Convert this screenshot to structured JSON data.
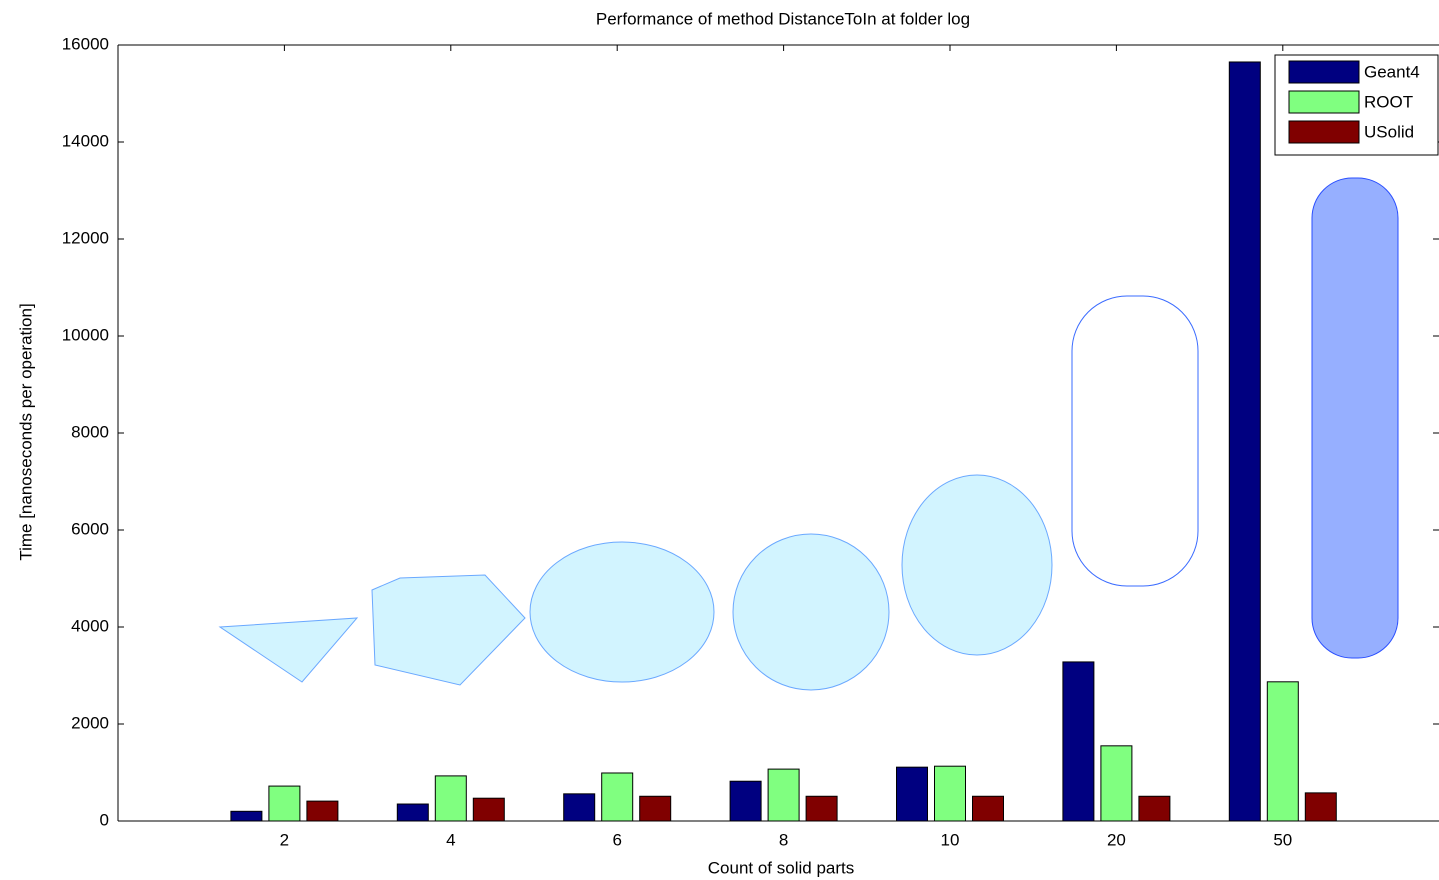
{
  "chart_data": {
    "type": "bar",
    "title": "Performance of method DistanceToIn at folder log",
    "x_label": "Count of solid parts",
    "y_label": "Time [nanoseconds per operation]",
    "categories": [
      "2",
      "4",
      "6",
      "8",
      "10",
      "20",
      "50"
    ],
    "series": [
      {
        "name": "Geant4",
        "color": "#000080",
        "values": [
          200,
          350,
          560,
          820,
          1110,
          3280,
          15650
        ]
      },
      {
        "name": "ROOT",
        "color": "#80ff80",
        "values": [
          720,
          930,
          990,
          1070,
          1130,
          1550,
          2870
        ]
      },
      {
        "name": "USolid",
        "color": "#800000",
        "values": [
          410,
          470,
          510,
          510,
          510,
          510,
          580
        ]
      }
    ],
    "ylim": [
      0,
      16000
    ],
    "yticks": [
      0,
      2000,
      4000,
      6000,
      8000,
      10000,
      12000,
      14000,
      16000
    ],
    "grid": false,
    "legend": "top-right"
  }
}
